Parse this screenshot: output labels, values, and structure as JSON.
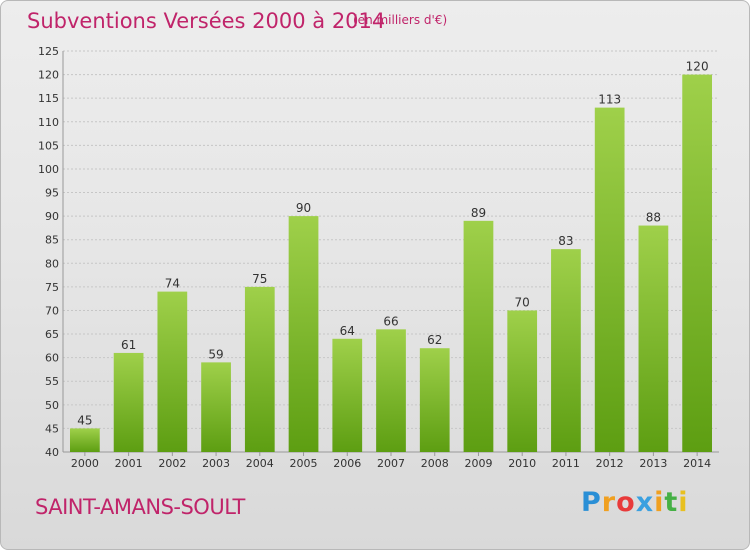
{
  "title": "Subventions Versées 2000 à 2014",
  "unit_note": "(en milliers d'€)",
  "place": "SAINT-AMANS-SOULT",
  "logo": {
    "letters": [
      "P",
      "r",
      "o",
      "x",
      "i",
      "t",
      "i"
    ],
    "colors": [
      "#2a8fd6",
      "#f0a020",
      "#e83a3a",
      "#3aa0e0",
      "#f0a020",
      "#45b045",
      "#e8c020"
    ]
  },
  "chart_data": {
    "type": "bar",
    "categories": [
      "2000",
      "2001",
      "2002",
      "2003",
      "2004",
      "2005",
      "2006",
      "2007",
      "2008",
      "2009",
      "2010",
      "2011",
      "2012",
      "2013",
      "2014"
    ],
    "values": [
      45,
      61,
      74,
      59,
      75,
      90,
      64,
      66,
      62,
      89,
      70,
      83,
      113,
      88,
      120
    ],
    "ylim": [
      40,
      125
    ],
    "yticks": [
      40,
      45,
      50,
      55,
      60,
      65,
      70,
      75,
      80,
      85,
      90,
      95,
      100,
      105,
      110,
      115,
      120,
      125
    ],
    "grid": true,
    "bar_color_top": "#9fd04a",
    "bar_color_bottom": "#5d9e12",
    "title_color": "#c0246a"
  }
}
